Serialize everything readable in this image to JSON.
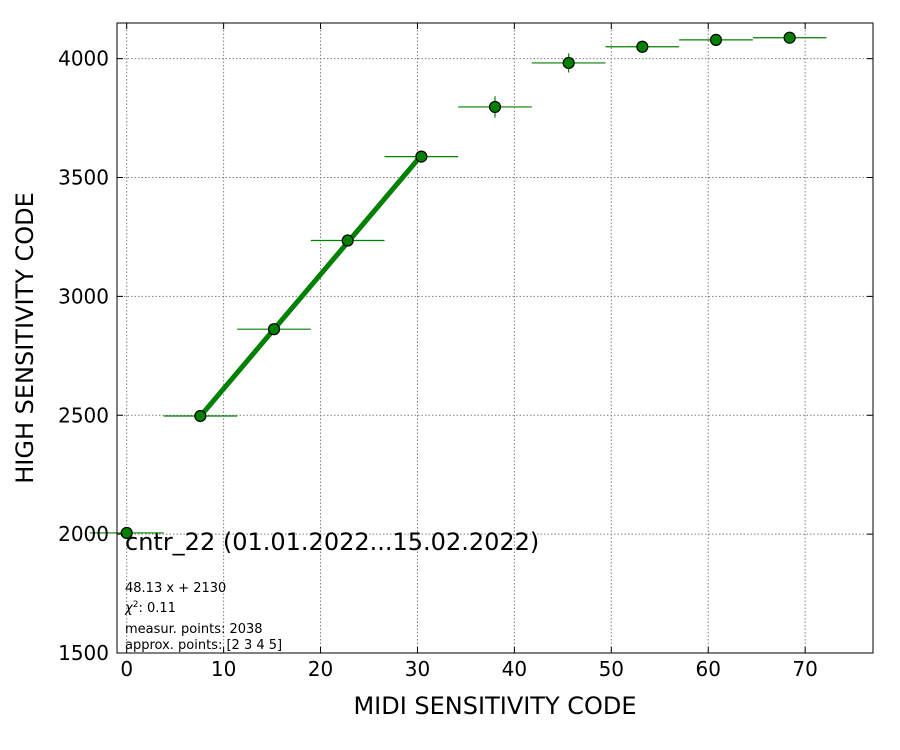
{
  "chart_data": {
    "type": "scatter",
    "title": "cntr_22 (01.01.2022...15.02.2022)",
    "xlabel": "MIDI SENSITIVITY CODE",
    "ylabel": "HIGH SENSITIVITY CODE",
    "xlim": [
      -1,
      77
    ],
    "ylim": [
      1500,
      4150
    ],
    "x_ticks": [
      0,
      10,
      20,
      30,
      40,
      50,
      60,
      70
    ],
    "y_ticks": [
      1500,
      2000,
      2500,
      3000,
      3500,
      4000
    ],
    "grid": true,
    "grid_style": "dotted",
    "colors": {
      "points": "#008000",
      "fit_line": "#008000",
      "error_bars": "#008000",
      "marker_edge": "#000000",
      "grid": "#808080"
    },
    "series": [
      {
        "x": [
          0,
          7.6,
          15.2,
          22.8,
          30.4,
          38.0,
          45.6,
          53.2,
          60.8,
          68.4
        ],
        "y": [
          2005,
          2497,
          2862,
          3235,
          3588,
          3797,
          3982,
          4050,
          4079,
          4088
        ],
        "x_err": [
          3.8,
          3.8,
          3.8,
          3.8,
          3.8,
          3.8,
          3.8,
          3.8,
          3.8,
          3.8
        ],
        "y_err": [
          5,
          8,
          10,
          15,
          12,
          45,
          40,
          10,
          8,
          6
        ]
      }
    ],
    "fit_line": {
      "x": [
        7.6,
        30.4
      ],
      "y": [
        2496,
        3593
      ]
    },
    "annotations": {
      "equation": "48.13 x + 2130",
      "chi2_value": ": 0.11",
      "measured_points": "measur. points: 2038",
      "approx_points": "approx. points: [2 3 4 5]"
    }
  }
}
